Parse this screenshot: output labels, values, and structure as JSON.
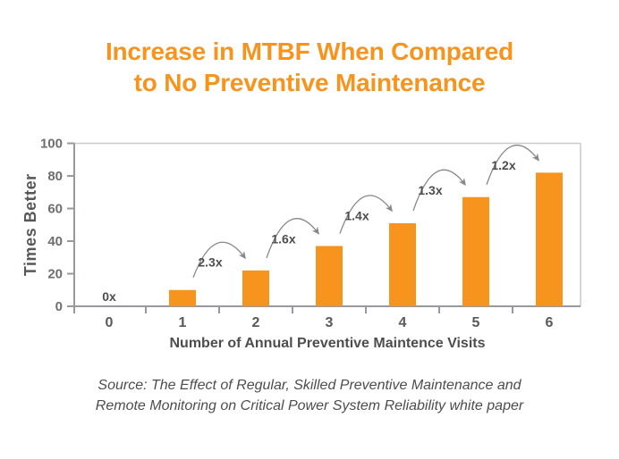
{
  "title": {
    "line1": "Increase in MTBF When Compared",
    "line2": "to No Preventive Maintenance"
  },
  "source": {
    "line1": "Source: The Effect of Regular, Skilled Preventive Maintenance and",
    "line2": "Remote Monitoring on Critical Power System Reliability white paper"
  },
  "colors": {
    "title_orange": "#F7941E",
    "bar_orange": "#F7941E",
    "axis_gray": "#97999C",
    "border_gray": "#C9CACC",
    "tick_text_gray": "#6D6E71",
    "label_dark": "#58595B",
    "annotation_dark": "#4D4D4F",
    "arrow_gray": "#85878A"
  },
  "chart_data": {
    "type": "bar",
    "title": "Increase in MTBF When Compared to No Preventive Maintenance",
    "categories": [
      "0",
      "1",
      "2",
      "3",
      "4",
      "5",
      "6"
    ],
    "values": [
      0,
      10,
      22,
      37,
      51,
      67,
      82
    ],
    "xlabel": "Number of Annual Preventive Maintence Visits",
    "ylabel": "Times Better",
    "yticks": [
      0,
      20,
      40,
      60,
      80,
      100
    ],
    "ylim": [
      0,
      100
    ],
    "grid": false,
    "legend": "none",
    "zero_bar_label": "0x",
    "arrow_annotations": [
      {
        "from": "1",
        "to": "2",
        "label": "2.3x"
      },
      {
        "from": "2",
        "to": "3",
        "label": "1.6x"
      },
      {
        "from": "3",
        "to": "4",
        "label": "1.4x"
      },
      {
        "from": "4",
        "to": "5",
        "label": "1.3x"
      },
      {
        "from": "5",
        "to": "6",
        "label": "1.2x"
      }
    ]
  }
}
